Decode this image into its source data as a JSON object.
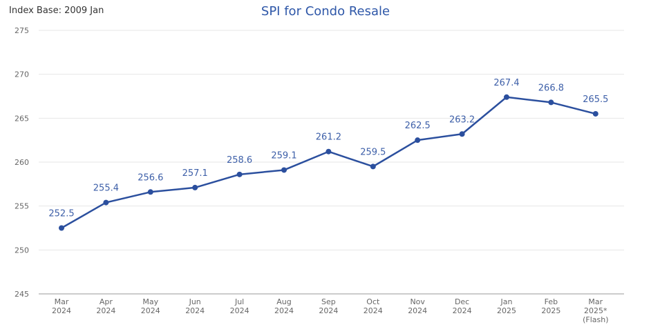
{
  "chart_data": {
    "type": "line",
    "title": "SPI for Condo Resale",
    "subtitle": "Index Base: 2009 Jan",
    "categories": [
      [
        "Mar",
        "2024"
      ],
      [
        "Apr",
        "2024"
      ],
      [
        "May",
        "2024"
      ],
      [
        "Jun",
        "2024"
      ],
      [
        "Jul",
        "2024"
      ],
      [
        "Aug",
        "2024"
      ],
      [
        "Sep",
        "2024"
      ],
      [
        "Oct",
        "2024"
      ],
      [
        "Nov",
        "2024"
      ],
      [
        "Dec",
        "2024"
      ],
      [
        "Jan",
        "2025"
      ],
      [
        "Feb",
        "2025"
      ],
      [
        "Mar",
        "2025*",
        "(Flash)"
      ]
    ],
    "values": [
      252.5,
      255.4,
      256.6,
      257.1,
      258.6,
      259.1,
      261.2,
      259.5,
      262.5,
      263.2,
      267.4,
      266.8,
      265.5
    ],
    "ylim": [
      245,
      275
    ],
    "yticks": [
      245,
      250,
      255,
      260,
      265,
      270,
      275
    ],
    "grid": true,
    "legend": "none",
    "line_color": "#2b4f9e",
    "label_color": "#3d5fa8"
  }
}
